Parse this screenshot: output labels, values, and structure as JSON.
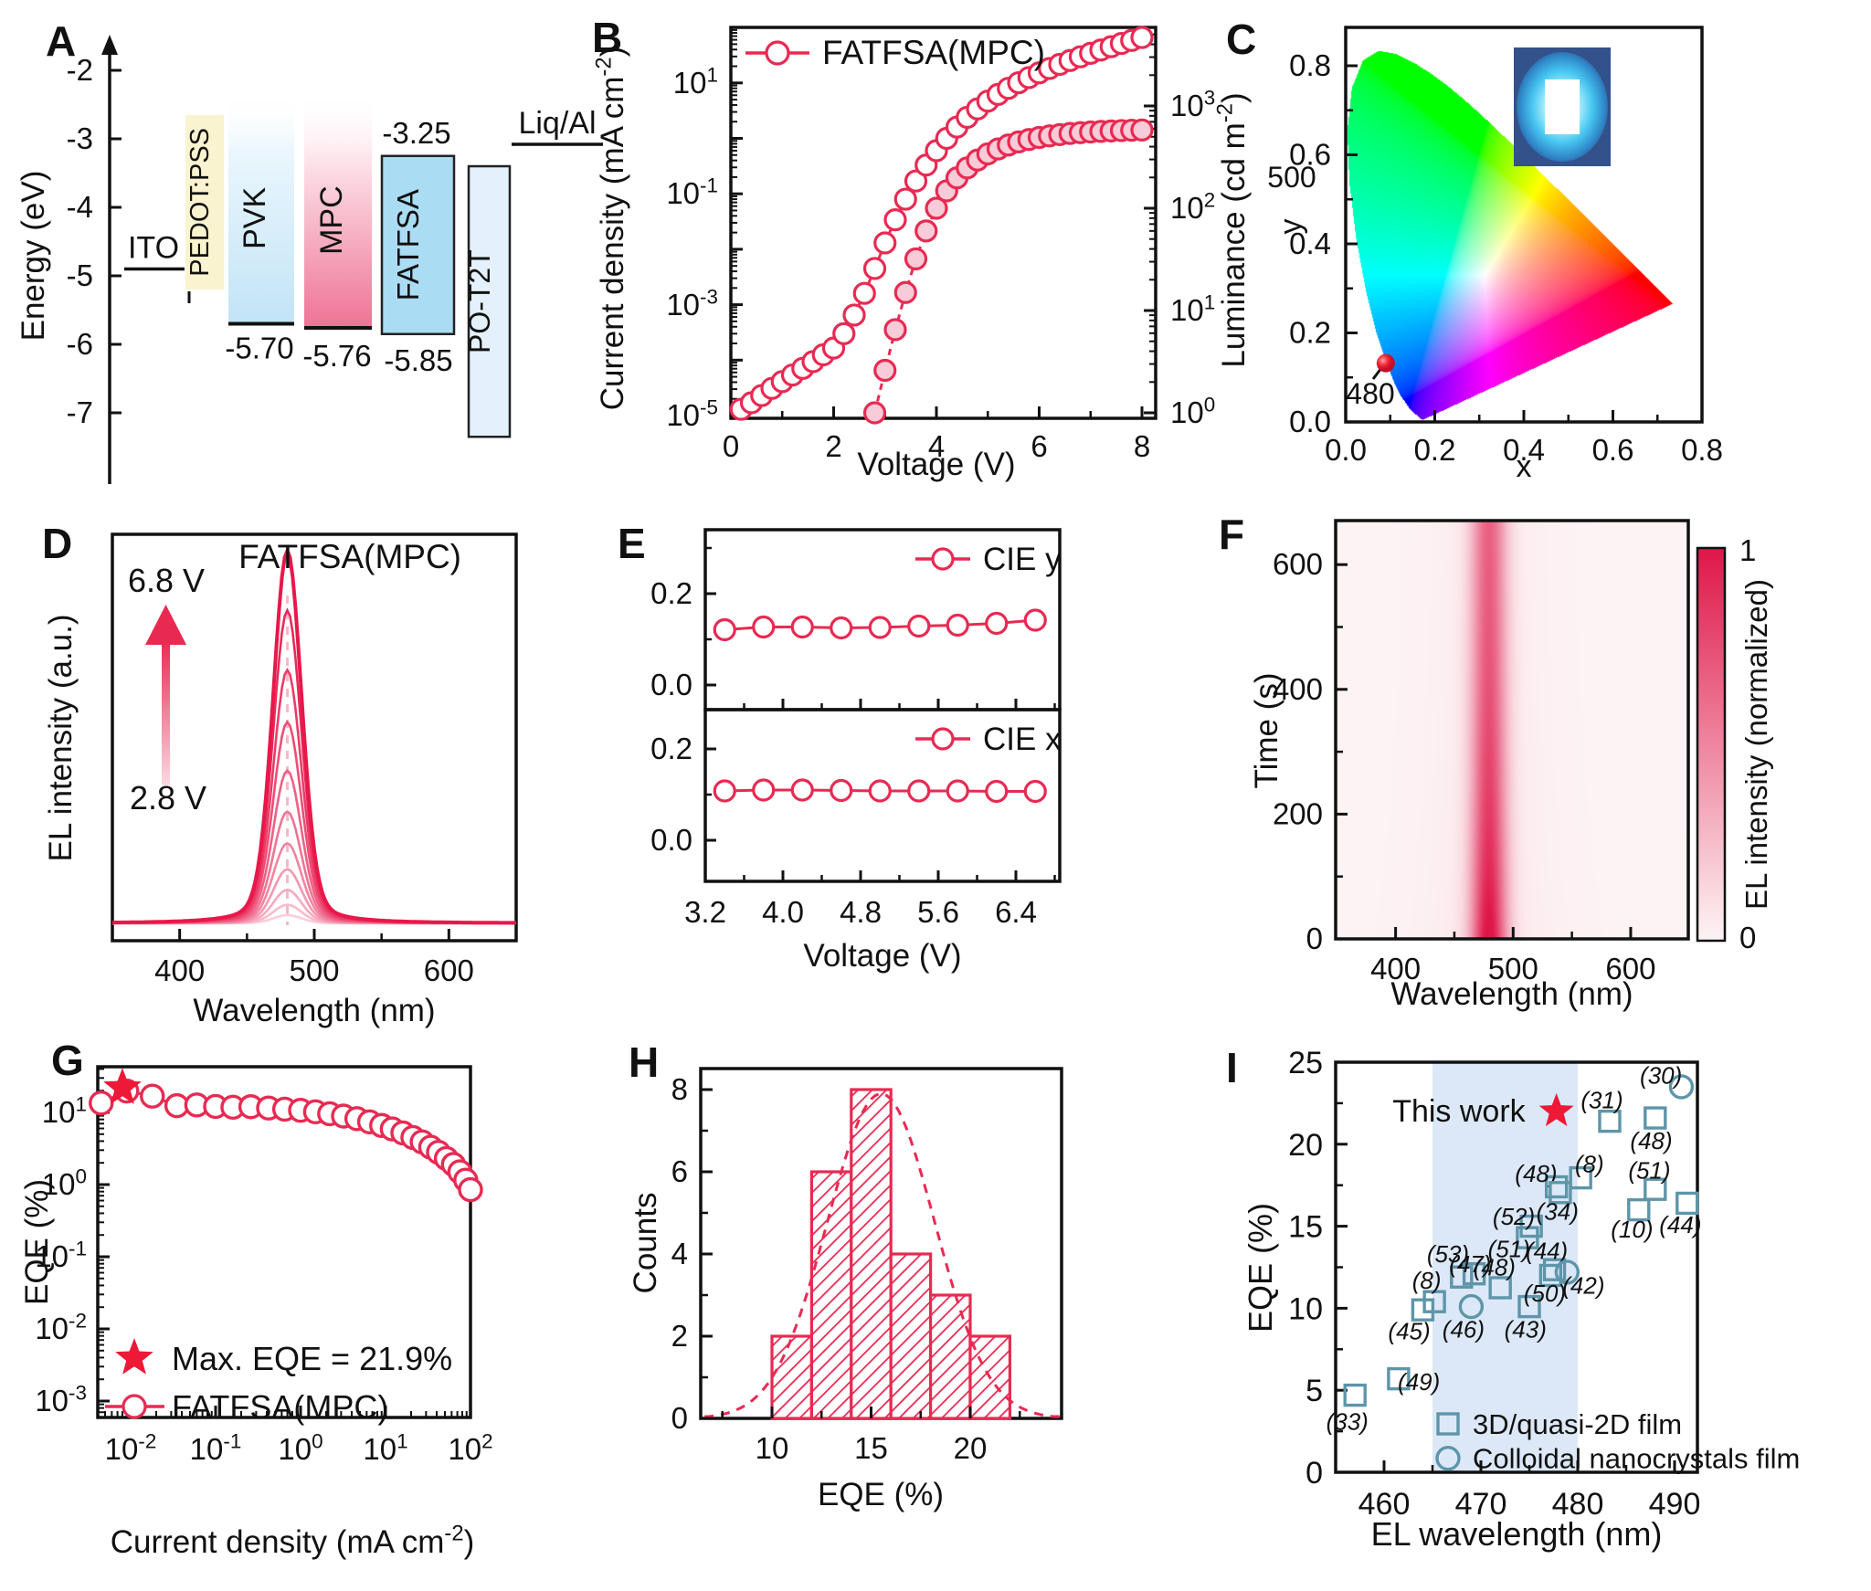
{
  "colors": {
    "crimson": "#e82a52",
    "crimson_dark": "#de1243",
    "pink_fill": "#f7cbd7",
    "pale_pink": "#fdf4f5",
    "teal": "#5e95a9",
    "band_blue": "#dce8f7",
    "blue_label": "#1a1acd",
    "black": "#111111",
    "fatfsa_fill": "#aadcf4",
    "pot2t_fill": "#e4f1fc",
    "pedot_fill": "#faf3cf",
    "pvk_fill": "#c2e4f6",
    "mpc_fill": "#ef7294",
    "star_red": "#ee1837"
  },
  "chart_data": [
    {
      "id": "A",
      "type": "diagram",
      "ylabel": "Energy (eV)",
      "yticks": [
        -2,
        -3,
        -4,
        -5,
        -6,
        -7
      ],
      "layers": [
        {
          "name": "ITO",
          "kind": "level",
          "energy": -4.9
        },
        {
          "name": "PEDOT:PSS",
          "kind": "block",
          "top": -2.65,
          "bottom": -5.2
        },
        {
          "name": "PVK",
          "kind": "gradient-block",
          "top": -2.35,
          "bottom": -5.7,
          "homo_label": "-5.70"
        },
        {
          "name": "MPC",
          "kind": "gradient-block",
          "top": -2.35,
          "bottom": -5.76,
          "homo_label": "-5.76"
        },
        {
          "name": "FATFSA",
          "kind": "block",
          "top": -3.25,
          "bottom": -5.85,
          "lumo_label": "-3.25",
          "homo_label": "-5.85"
        },
        {
          "name": "PO-T2T",
          "kind": "block",
          "top": -3.4,
          "bottom": -7.35
        },
        {
          "name": "Liq/Al",
          "kind": "level",
          "energy": -3.08
        }
      ]
    },
    {
      "id": "B",
      "type": "line",
      "legend": "FATFSA(MPC)",
      "xlabel": "Voltage (V)",
      "ylabel": "Current density (mA cm^{-2})",
      "ylabel_right": "Luminance (cd m^{-2})",
      "xticks": [
        0,
        2,
        4,
        6,
        8
      ],
      "ytick_labels_left": [
        "10^{1}",
        "10^{-1}",
        "10^{-3}",
        "10^{-5}"
      ],
      "ytick_labels_right": [
        "10^{3}",
        "10^{2}",
        "10^{1}",
        "10^{0}"
      ],
      "series": [
        {
          "name": "current_density",
          "x": [
            0.2,
            0.4,
            0.6,
            0.8,
            1.0,
            1.2,
            1.4,
            1.6,
            1.8,
            2.0,
            2.2,
            2.4,
            2.6,
            2.8,
            3.0,
            3.2,
            3.4,
            3.6,
            3.8,
            4.0,
            4.2,
            4.4,
            4.6,
            4.8,
            5.0,
            5.2,
            5.4,
            5.6,
            5.8,
            6.0,
            6.2,
            6.4,
            6.6,
            6.8,
            7.0,
            7.2,
            7.4,
            7.6,
            7.8,
            8.0
          ],
          "y": [
            1.3e-05,
            1.7e-05,
            2.3e-05,
            3.1e-05,
            4.1e-05,
            5.4e-05,
            7.1e-05,
            9.4e-05,
            0.000125,
            0.000165,
            0.0003,
            0.00065,
            0.0016,
            0.0045,
            0.013,
            0.034,
            0.08,
            0.17,
            0.33,
            0.6,
            1.0,
            1.6,
            2.4,
            3.4,
            4.7,
            6.2,
            8.0,
            10.1,
            12.5,
            15.2,
            18.2,
            21.6,
            25.4,
            29.6,
            34.2,
            39.3,
            45,
            51.5,
            58.5,
            66
          ]
        },
        {
          "name": "luminance",
          "x": [
            2.8,
            3.0,
            3.2,
            3.4,
            3.6,
            3.8,
            4.0,
            4.2,
            4.4,
            4.6,
            4.8,
            5.0,
            5.2,
            5.4,
            5.6,
            5.8,
            6.0,
            6.2,
            6.4,
            6.6,
            6.8,
            7.0,
            7.2,
            7.4,
            7.6,
            7.8,
            8.0
          ],
          "y": [
            1.0,
            2.6,
            6.5,
            15,
            32,
            60,
            100,
            148,
            198,
            248,
            296,
            340,
            380,
            415,
            445,
            470,
            492,
            510,
            525,
            538,
            548,
            557,
            564,
            570,
            575,
            579,
            582
          ]
        }
      ]
    },
    {
      "id": "C",
      "type": "chromaticity",
      "xlabel": "x",
      "ylabel": "y",
      "xticks": [
        0.0,
        0.2,
        0.4,
        0.6,
        0.8
      ],
      "yticks": [
        0.0,
        0.2,
        0.4,
        0.6,
        0.8
      ],
      "point": {
        "x": 0.09,
        "y": 0.132
      },
      "locus_labels": [
        {
          "text": "500"
        },
        {
          "text": "480"
        }
      ],
      "inset": "photo of blue-emitting LED pixel"
    },
    {
      "id": "D",
      "type": "line",
      "legend": "FATFSA(MPC)",
      "xlabel": "Wavelength (nm)",
      "ylabel": "EL intensity (a.u.)",
      "xticks": [
        400,
        500,
        600
      ],
      "xlim": [
        350,
        650
      ],
      "annotation_low": "2.8 V",
      "annotation_high": "6.8 V",
      "peak_nm": 480,
      "voltages": [
        2.8,
        3.2,
        3.6,
        4.0,
        4.4,
        4.8,
        5.2,
        5.6,
        6.0,
        6.4,
        6.8
      ],
      "amplitudes": [
        0.022,
        0.05,
        0.09,
        0.145,
        0.215,
        0.3,
        0.41,
        0.54,
        0.68,
        0.84,
        1.0
      ]
    },
    {
      "id": "E",
      "type": "line",
      "xlabel": "Voltage (V)",
      "xticks": [
        3.2,
        4.0,
        4.8,
        5.6,
        6.4
      ],
      "yticks": [
        0.0,
        0.2
      ],
      "series": [
        {
          "name": "CIE y",
          "x": [
            3.4,
            3.8,
            4.2,
            4.6,
            5.0,
            5.4,
            5.8,
            6.2,
            6.6
          ],
          "y": [
            0.121,
            0.127,
            0.127,
            0.125,
            0.126,
            0.129,
            0.131,
            0.135,
            0.142
          ]
        },
        {
          "name": "CIE x",
          "x": [
            3.4,
            3.8,
            4.2,
            4.6,
            5.0,
            5.4,
            5.8,
            6.2,
            6.6
          ],
          "y": [
            0.108,
            0.11,
            0.11,
            0.109,
            0.108,
            0.108,
            0.108,
            0.107,
            0.107
          ]
        }
      ]
    },
    {
      "id": "F",
      "type": "heatmap",
      "xlabel": "Wavelength (nm)",
      "ylabel": "Time (s)",
      "xticks": [
        400,
        500,
        600
      ],
      "yticks": [
        0,
        200,
        400,
        600
      ],
      "xlim": [
        350,
        650
      ],
      "ylim": [
        0,
        670
      ],
      "band_center_nm": 479,
      "band_sigma_nm": 10,
      "colorbar": {
        "label": "EL intensity (normalized)",
        "min_label": "0",
        "max_label": "1"
      }
    },
    {
      "id": "G",
      "type": "scatter",
      "xlabel": "Current density (mA cm^{-2})",
      "ylabel": "EQE (%)",
      "xtick_labels": [
        "10^{-2}",
        "10^{-1}",
        "10^{0}",
        "10^{1}",
        "10^{2}"
      ],
      "ytick_labels": [
        "10^{1}",
        "10^{0}",
        "10^{-1}",
        "10^{-2}",
        "10^{-3}"
      ],
      "legend": [
        {
          "symbol": "star",
          "label": "Max. EQE = 21.9%"
        },
        {
          "symbol": "circle",
          "label": "FATFSA(MPC)"
        }
      ],
      "max_eqe_point": {
        "x": 0.008,
        "y": 21.9
      },
      "x": [
        0.0045,
        0.009,
        0.018,
        0.035,
        0.06,
        0.1,
        0.16,
        0.26,
        0.42,
        0.65,
        1.0,
        1.5,
        2.2,
        3.2,
        4.6,
        6.5,
        9.0,
        12,
        16,
        21,
        27,
        34,
        42,
        52,
        63,
        75,
        88,
        100
      ],
      "y": [
        13.5,
        19.8,
        16.8,
        12.4,
        12.7,
        12.1,
        11.8,
        12.0,
        11.5,
        11.1,
        10.7,
        10.2,
        9.6,
        8.9,
        8.2,
        7.4,
        6.6,
        5.9,
        5.2,
        4.5,
        3.9,
        3.3,
        2.8,
        2.3,
        1.9,
        1.5,
        1.15,
        0.85
      ]
    },
    {
      "id": "H",
      "type": "bar",
      "xlabel": "EQE (%)",
      "ylabel": "Counts",
      "xticks": [
        10,
        15,
        20
      ],
      "yticks": [
        0,
        2,
        4,
        6,
        8
      ],
      "bin_edges": [
        10,
        12,
        14,
        16,
        18,
        20,
        22
      ],
      "counts": [
        2,
        6,
        8,
        4,
        3,
        2
      ],
      "fit": {
        "type": "gaussian",
        "amplitude": 7.9,
        "mean": 15.5,
        "sigma": 2.7
      }
    },
    {
      "id": "I",
      "type": "scatter",
      "xlabel": "EL wavelength (nm)",
      "ylabel": "EQE (%)",
      "xticks": [
        460,
        470,
        480,
        490
      ],
      "yticks": [
        0,
        5,
        10,
        15,
        20,
        25
      ],
      "xlim": [
        455,
        492
      ],
      "ylim": [
        0,
        25
      ],
      "shaded_region_nm": [
        465,
        480
      ],
      "this_work": {
        "label": "This work",
        "x": 477.8,
        "y": 22.0
      },
      "legend": [
        {
          "symbol": "square",
          "label": "3D/quasi-2D film"
        },
        {
          "symbol": "circle",
          "label": "Colloidal nanocrystals film"
        }
      ],
      "points": [
        {
          "ref": "(33)",
          "x": 457.0,
          "y": 4.7,
          "type": "square",
          "lx": 456.2,
          "ly": 3.1
        },
        {
          "ref": "(49)",
          "x": 461.5,
          "y": 5.7,
          "type": "square",
          "lx": 463.6,
          "ly": 5.5
        },
        {
          "ref": "(45)",
          "x": 464.0,
          "y": 9.9,
          "type": "square",
          "lx": 462.6,
          "ly": 8.6
        },
        {
          "ref": "(8)",
          "x": 465.2,
          "y": 10.4,
          "type": "square",
          "lx": 464.4,
          "ly": 11.7
        },
        {
          "ref": "(53)",
          "x": 468.0,
          "y": 11.9,
          "type": "square",
          "lx": 466.6,
          "ly": 13.3
        },
        {
          "ref": "(47)",
          "x": 469.3,
          "y": 12.1,
          "type": "square",
          "lx": 468.9,
          "ly": 12.7
        },
        {
          "ref": "(46)",
          "x": 469.0,
          "y": 10.1,
          "type": "circle",
          "lx": 468.2,
          "ly": 8.7
        },
        {
          "ref": "(48)",
          "x": 472.0,
          "y": 11.25,
          "type": "square",
          "lx": 471.4,
          "ly": 12.5
        },
        {
          "ref": "(51)",
          "x": 474.8,
          "y": 14.3,
          "type": "square",
          "lx": 472.9,
          "ly": 13.6
        },
        {
          "ref": "(52)",
          "x": 475.2,
          "y": 15.0,
          "type": "square",
          "lx": 473.4,
          "ly": 15.6
        },
        {
          "ref": "(43)",
          "x": 475.0,
          "y": 10.1,
          "type": "square",
          "lx": 474.6,
          "ly": 8.7
        },
        {
          "ref": "(44)",
          "x": 477.6,
          "y": 12.35,
          "type": "square",
          "lx": 476.8,
          "ly": 13.5
        },
        {
          "ref": "(50)",
          "x": 477.2,
          "y": 12.0,
          "type": "square",
          "lx": 476.6,
          "ly": 10.9
        },
        {
          "ref": "(42)",
          "x": 478.9,
          "y": 12.2,
          "type": "circle",
          "lx": 480.6,
          "ly": 11.4
        },
        {
          "ref": "(48)",
          "x": 477.8,
          "y": 17.4,
          "type": "square",
          "lx": 475.7,
          "ly": 18.2
        },
        {
          "ref": "(34)",
          "x": 478.2,
          "y": 17.05,
          "type": "square",
          "lx": 477.9,
          "ly": 15.9
        },
        {
          "ref": "(8)",
          "x": 480.3,
          "y": 17.95,
          "type": "square",
          "lx": 481.2,
          "ly": 18.8
        },
        {
          "ref": "(31)",
          "x": 483.3,
          "y": 21.4,
          "type": "square",
          "lx": 482.5,
          "ly": 22.7
        },
        {
          "ref": "(30)",
          "x": 490.7,
          "y": 23.5,
          "type": "circle",
          "lx": 488.6,
          "ly": 24.2
        },
        {
          "ref": "(48)",
          "x": 488.0,
          "y": 21.6,
          "type": "square",
          "lx": 487.6,
          "ly": 20.2
        },
        {
          "ref": "(51)",
          "x": 488.0,
          "y": 17.25,
          "type": "square",
          "lx": 487.4,
          "ly": 18.4
        },
        {
          "ref": "(10)",
          "x": 486.3,
          "y": 16.0,
          "type": "square",
          "lx": 485.6,
          "ly": 14.8
        },
        {
          "ref": "(44)",
          "x": 491.3,
          "y": 16.4,
          "type": "square",
          "lx": 490.6,
          "ly": 15.1
        }
      ]
    }
  ]
}
